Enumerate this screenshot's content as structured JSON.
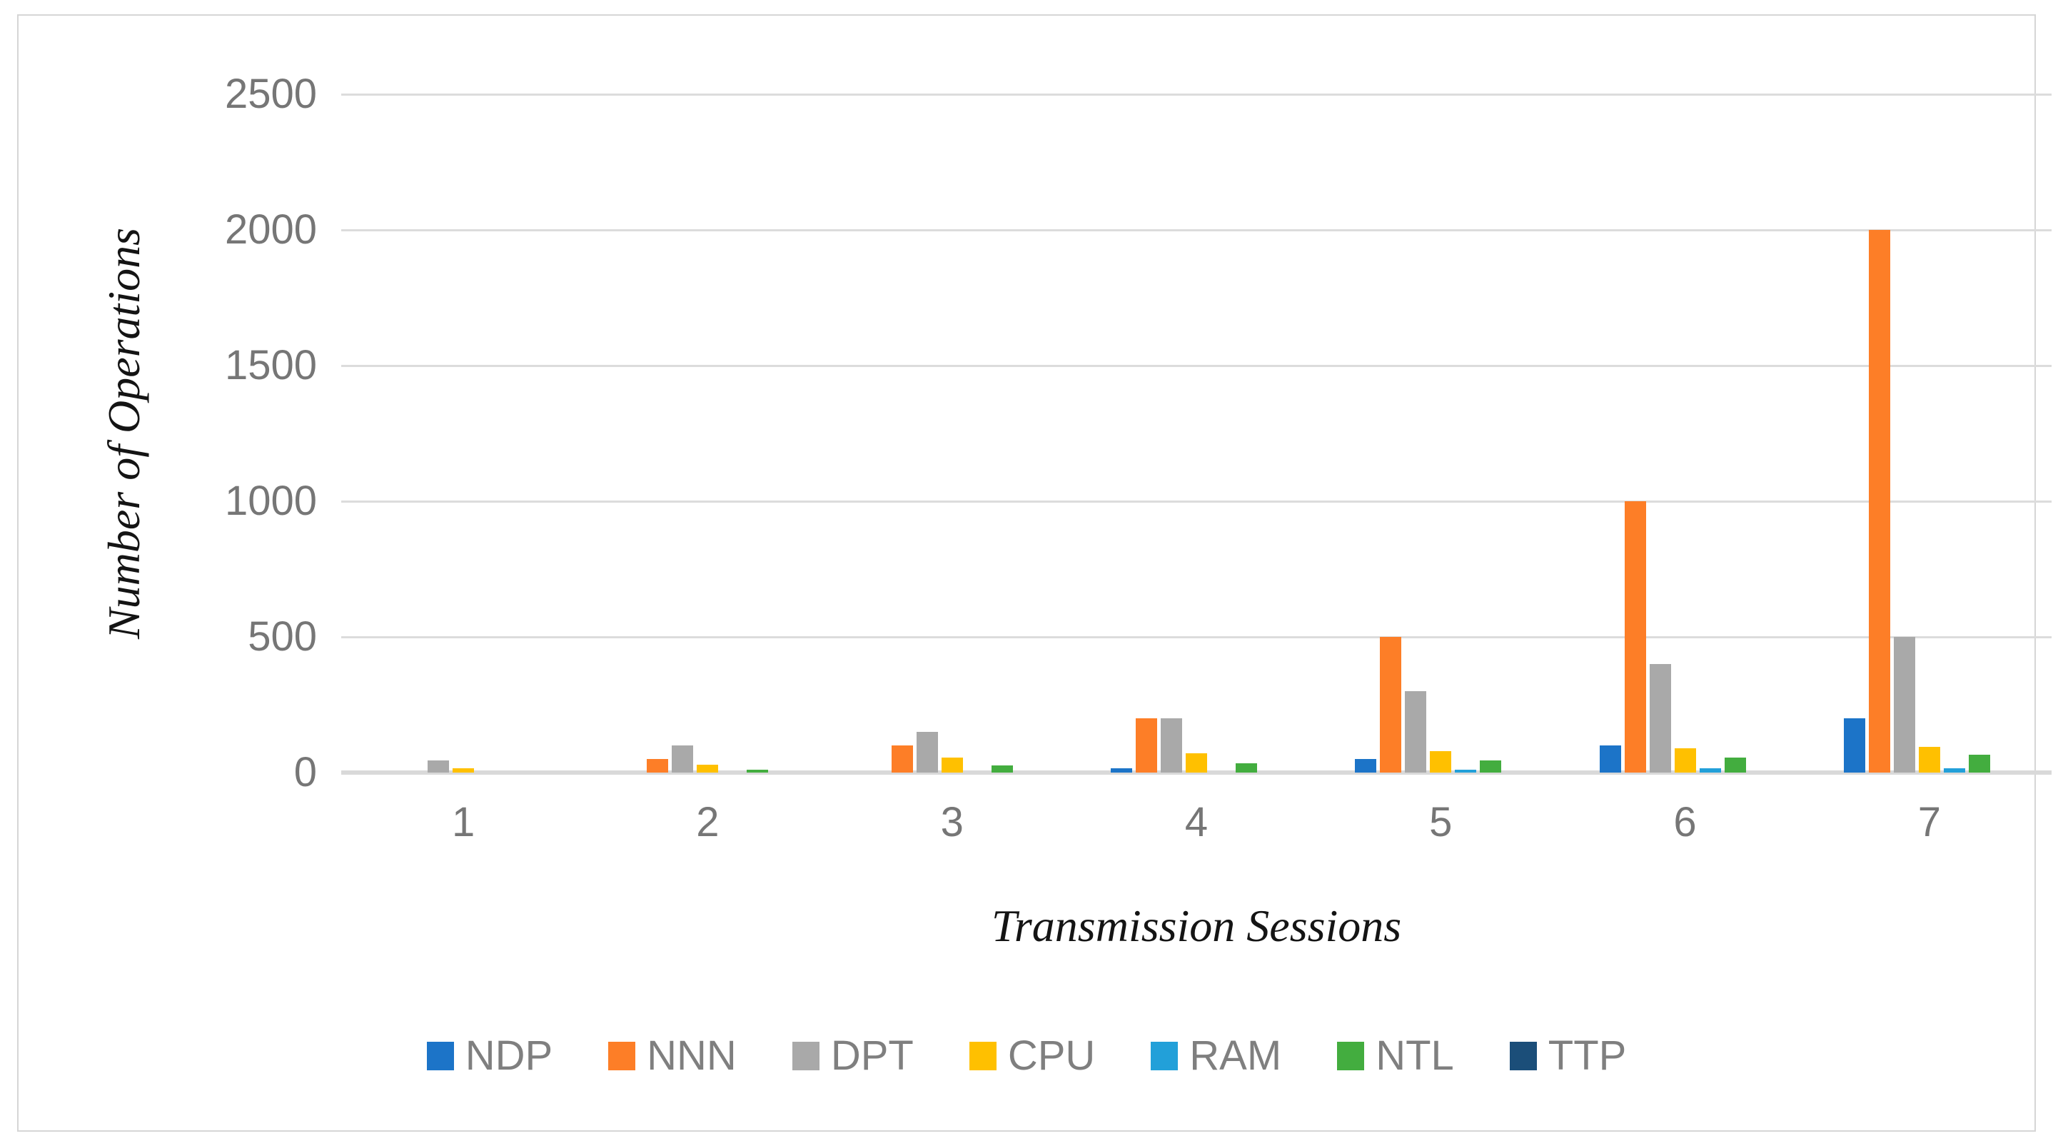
{
  "chart_data": {
    "type": "bar",
    "title": "",
    "xlabel": "Transmission Sessions",
    "ylabel": "Number of Operations",
    "categories": [
      "1",
      "2",
      "3",
      "4",
      "5",
      "6",
      "7"
    ],
    "series": [
      {
        "name": "NDP",
        "color": "#1c74c8",
        "values": [
          0,
          0,
          0,
          15,
          50,
          100,
          200
        ]
      },
      {
        "name": "NNN",
        "color": "#fd7e27",
        "values": [
          0,
          50,
          100,
          200,
          500,
          1000,
          2000
        ]
      },
      {
        "name": "DPT",
        "color": "#a9a9a9",
        "values": [
          45,
          100,
          150,
          200,
          300,
          400,
          500
        ]
      },
      {
        "name": "CPU",
        "color": "#ffc000",
        "values": [
          15,
          30,
          55,
          70,
          80,
          90,
          95
        ]
      },
      {
        "name": "RAM",
        "color": "#22a0d9",
        "values": [
          0,
          0,
          0,
          0,
          10,
          15,
          15
        ]
      },
      {
        "name": "NTL",
        "color": "#43ad3f",
        "values": [
          0,
          10,
          25,
          35,
          45,
          55,
          65
        ]
      },
      {
        "name": "TTP",
        "color": "#1b4e79",
        "values": [
          0,
          0,
          0,
          0,
          0,
          0,
          0
        ]
      }
    ],
    "y_ticks": [
      0,
      500,
      1000,
      1500,
      2000,
      2500
    ],
    "ylim": [
      0,
      2500
    ],
    "grid": true,
    "legend_position": "bottom",
    "colors": {
      "gridline": "#dcdcdc",
      "axis_line": "#d9d9d9",
      "tick_text": "#767676",
      "legend_text": "#7f7f7f",
      "axis_title_text": "#141414",
      "frame_border": "#d6d6d6"
    }
  }
}
